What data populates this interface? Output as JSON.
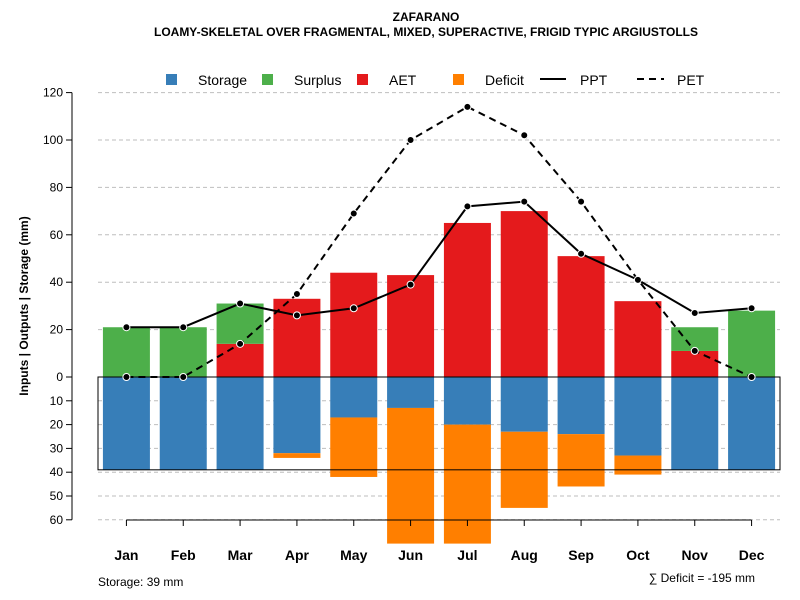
{
  "chart_data": {
    "type": "bar",
    "title": "ZAFARANO",
    "subtitle": "LOAMY-SKELETAL OVER FRAGMENTAL, MIXED, SUPERACTIVE, FRIGID TYPIC ARGIUSTOLLS",
    "ylabel": "Inputs | Outputs | Storage    (mm)",
    "categories": [
      "Jan",
      "Feb",
      "Mar",
      "Apr",
      "May",
      "Jun",
      "Jul",
      "Aug",
      "Sep",
      "Oct",
      "Nov",
      "Dec"
    ],
    "upper_ticks": [
      "0",
      "20",
      "40",
      "60",
      "80",
      "100",
      "120"
    ],
    "upper_tick_values": [
      0,
      20,
      40,
      60,
      80,
      100,
      120
    ],
    "lower_ticks": [
      "10",
      "20",
      "30",
      "40",
      "50",
      "60"
    ],
    "lower_tick_values": [
      10,
      20,
      30,
      40,
      50,
      60
    ],
    "ylim_upper": [
      0,
      120
    ],
    "ylim_lower": [
      0,
      60
    ],
    "legend": {
      "storage": "Storage",
      "surplus": "Surplus",
      "aet": "AET",
      "deficit": "Deficit",
      "ppt": "PPT",
      "pet": "PET"
    },
    "colors": {
      "storage": "#377EB8",
      "surplus": "#4DAF4A",
      "aet": "#E41A1C",
      "deficit": "#FF7F00",
      "line": "#000000",
      "grid": "#BEBEBE"
    },
    "series": {
      "aet": [
        0,
        0,
        14,
        33,
        44,
        43,
        65,
        70,
        51,
        32,
        11,
        0
      ],
      "surplus": [
        21,
        21,
        17,
        0,
        0,
        0,
        0,
        0,
        0,
        0,
        10,
        28
      ],
      "storage": [
        39,
        39,
        39,
        32,
        17,
        13,
        20,
        23,
        24,
        33,
        39,
        39
      ],
      "deficit": [
        0,
        0,
        0,
        2,
        25,
        57,
        50,
        32,
        22,
        8,
        0,
        0
      ],
      "ppt": [
        21,
        21,
        31,
        26,
        29,
        39,
        72,
        74,
        52,
        41,
        27,
        29
      ],
      "pet": [
        0,
        0,
        14,
        35,
        69,
        100,
        114,
        102,
        74,
        41,
        11,
        0
      ]
    },
    "storage_capacity": 39,
    "footer_left": "Storage: 39 mm",
    "footer_right": "∑ Deficit = -195 mm"
  }
}
